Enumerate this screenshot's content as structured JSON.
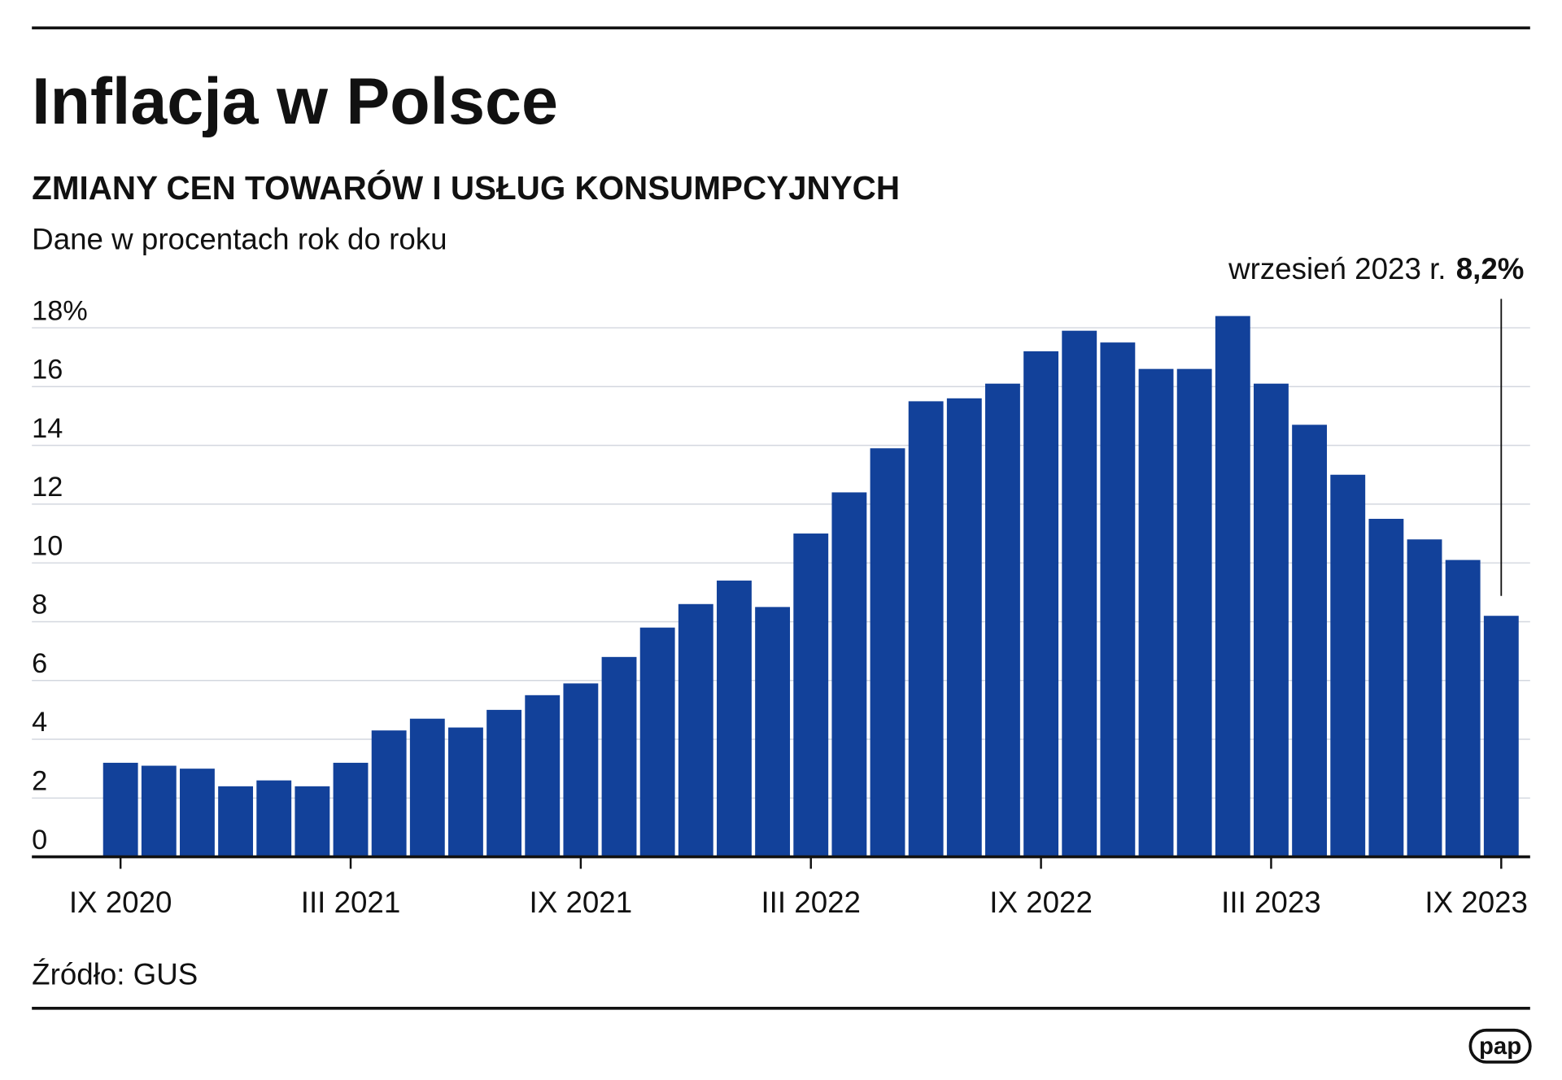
{
  "chart_data": {
    "type": "bar",
    "title": "Inflacja w Polsce",
    "subtitle": "ZMIANY CEN TOWARÓW I USŁUG KONSUMPCYJNYCH",
    "y_label": "Dane w procentach rok do roku",
    "categories": [
      "IX 2020",
      null,
      null,
      null,
      null,
      null,
      "III 2021",
      null,
      null,
      null,
      null,
      null,
      "IX 2021",
      null,
      null,
      null,
      null,
      null,
      "III 2022",
      null,
      null,
      null,
      null,
      null,
      "IX 2022",
      null,
      null,
      null,
      null,
      null,
      "III 2023",
      null,
      null,
      null,
      null,
      null,
      "IX 2023"
    ],
    "values": [
      3.2,
      3.1,
      3.0,
      2.4,
      2.6,
      2.4,
      3.2,
      4.3,
      4.7,
      4.4,
      5.0,
      5.5,
      5.9,
      6.8,
      7.8,
      8.6,
      9.4,
      8.5,
      11.0,
      12.4,
      13.9,
      15.5,
      15.6,
      16.1,
      17.2,
      17.9,
      17.5,
      16.6,
      16.6,
      18.4,
      16.1,
      14.7,
      13.0,
      11.5,
      10.8,
      10.1,
      8.2
    ],
    "value_labels": [
      null,
      null,
      null,
      null,
      null,
      null,
      null,
      null,
      null,
      null,
      null,
      null,
      null,
      null,
      null,
      null,
      null,
      null,
      null,
      null,
      null,
      null,
      null,
      null,
      null,
      null,
      null,
      null,
      null,
      null,
      null,
      null,
      null,
      null,
      null,
      null,
      "8,2%"
    ],
    "annotation": "wrzesień 2023 r.",
    "color": "#12419a",
    "ylim": [
      0,
      19
    ],
    "yticks": [
      0,
      2,
      4,
      6,
      8,
      10,
      12,
      14,
      16,
      {
        "value": 18,
        "label": "18%"
      }
    ],
    "grid": true,
    "source": "Źródło: GUS",
    "logo": "pap"
  }
}
